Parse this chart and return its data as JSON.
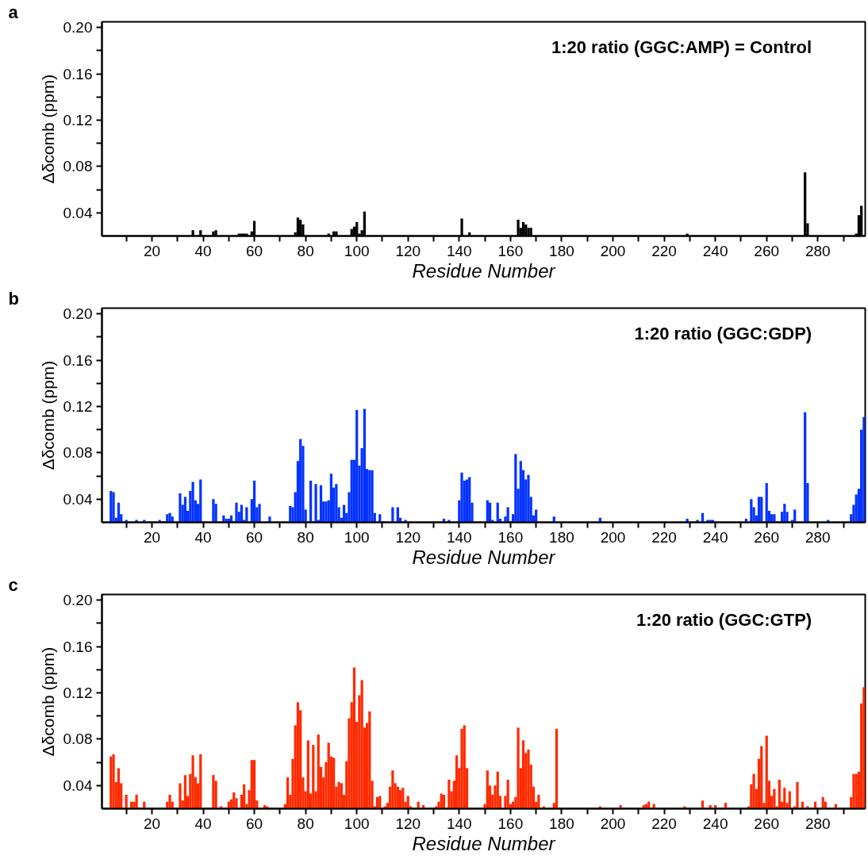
{
  "chart_data": [
    {
      "type": "bar",
      "title": "1:20 ratio (GGC:AMP) = Control",
      "xlabel": "Residue Number",
      "ylabel": "Δδcomb (ppm)",
      "annotations": [
        "a"
      ],
      "color": "#000000",
      "x": [
        36,
        39,
        44,
        45,
        54,
        55,
        56,
        57,
        59,
        60,
        76,
        77,
        78,
        79,
        89,
        91,
        92,
        98,
        99,
        100,
        101,
        102,
        103,
        141,
        144,
        163,
        164,
        165,
        166,
        167,
        168,
        229,
        275,
        276,
        295,
        296,
        297
      ],
      "values": [
        0.025,
        0.025,
        0.024,
        0.025,
        0.022,
        0.022,
        0.022,
        0.022,
        0.024,
        0.033,
        0.023,
        0.036,
        0.034,
        0.03,
        0.022,
        0.024,
        0.024,
        0.026,
        0.028,
        0.032,
        0.022,
        0.025,
        0.041,
        0.035,
        0.023,
        0.034,
        0.027,
        0.032,
        0.03,
        0.027,
        0.027,
        0.022,
        0.075,
        0.031,
        0.022,
        0.038,
        0.046
      ],
      "xlim": [
        0.5,
        298.5
      ],
      "ylim": [
        0.02,
        0.205
      ],
      "xticks": [
        {
          "value": 10,
          "label": null
        },
        20,
        {
          "value": 30,
          "label": null
        },
        40,
        {
          "value": 50,
          "label": null
        },
        60,
        {
          "value": 70,
          "label": null
        },
        80,
        {
          "value": 90,
          "label": null
        },
        100,
        {
          "value": 110,
          "label": null
        },
        120,
        {
          "value": 130,
          "label": null
        },
        140,
        {
          "value": 150,
          "label": null
        },
        160,
        {
          "value": 170,
          "label": null
        },
        180,
        {
          "value": 190,
          "label": null
        },
        200,
        {
          "value": 210,
          "label": null
        },
        220,
        {
          "value": 230,
          "label": null
        },
        240,
        {
          "value": 250,
          "label": null
        },
        260,
        {
          "value": 270,
          "label": null
        },
        280,
        {
          "value": 290,
          "label": null
        }
      ],
      "yticks": [
        0.04,
        {
          "value": 0.06,
          "label": null
        },
        0.08,
        {
          "value": 0.1,
          "label": null
        },
        0.12,
        {
          "value": 0.14,
          "label": null
        },
        0.16,
        {
          "value": 0.18,
          "label": null
        },
        {
          "value": 0.2,
          "label": "0.20"
        }
      ]
    },
    {
      "type": "bar",
      "title": "1:20 ratio (GGC:GDP)",
      "xlabel": "Residue Number",
      "ylabel": "Δδcomb (ppm)",
      "annotations": [
        "b"
      ],
      "color": "#0433ff",
      "x": [
        4,
        5,
        6,
        7,
        8,
        10,
        14,
        17,
        23,
        24,
        25,
        26,
        27,
        28,
        31,
        32,
        33,
        34,
        35,
        36,
        37,
        38,
        39,
        44,
        45,
        48,
        49,
        50,
        51,
        52,
        53,
        54,
        55,
        56,
        57,
        59,
        60,
        61,
        62,
        66,
        74,
        75,
        76,
        77,
        78,
        79,
        80,
        82,
        83,
        84,
        85,
        86,
        87,
        88,
        89,
        90,
        91,
        92,
        93,
        94,
        95,
        96,
        97,
        98,
        99,
        100,
        101,
        102,
        103,
        104,
        105,
        106,
        107,
        109,
        110,
        114,
        116,
        117,
        119,
        134,
        136,
        140,
        141,
        142,
        143,
        144,
        145,
        151,
        152,
        153,
        155,
        156,
        158,
        159,
        160,
        161,
        162,
        163,
        164,
        165,
        166,
        167,
        168,
        169,
        170,
        177,
        195,
        229,
        233,
        235,
        237,
        238,
        239,
        252,
        254,
        255,
        256,
        257,
        258,
        260,
        261,
        262,
        263,
        264,
        266,
        267,
        268,
        270,
        271,
        275,
        276,
        284,
        293,
        294,
        295,
        296,
        297,
        298
      ],
      "values": [
        0.047,
        0.046,
        0.024,
        0.037,
        0.027,
        0.022,
        0.022,
        0.022,
        0.022,
        0.021,
        0.021,
        0.027,
        0.028,
        0.025,
        0.045,
        0.035,
        0.042,
        0.03,
        0.047,
        0.055,
        0.039,
        0.036,
        0.057,
        0.04,
        0.036,
        0.026,
        0.023,
        0.023,
        0.026,
        0.021,
        0.037,
        0.029,
        0.035,
        0.022,
        0.033,
        0.04,
        0.056,
        0.033,
        0.036,
        0.025,
        0.034,
        0.033,
        0.046,
        0.073,
        0.092,
        0.086,
        0.031,
        0.056,
        0.021,
        0.053,
        0.022,
        0.052,
        0.038,
        0.038,
        0.039,
        0.062,
        0.05,
        0.053,
        0.033,
        0.024,
        0.035,
        0.028,
        0.046,
        0.074,
        0.074,
        0.117,
        0.069,
        0.084,
        0.118,
        0.066,
        0.065,
        0.065,
        0.028,
        0.027,
        0.021,
        0.033,
        0.033,
        0.024,
        0.022,
        0.023,
        0.022,
        0.039,
        0.063,
        0.056,
        0.057,
        0.059,
        0.037,
        0.039,
        0.037,
        0.022,
        0.037,
        0.023,
        0.025,
        0.033,
        0.021,
        0.027,
        0.079,
        0.049,
        0.073,
        0.065,
        0.057,
        0.061,
        0.042,
        0.026,
        0.031,
        0.025,
        0.024,
        0.023,
        0.022,
        0.028,
        0.022,
        0.022,
        0.022,
        0.023,
        0.04,
        0.033,
        0.026,
        0.042,
        0.042,
        0.054,
        0.03,
        0.027,
        0.027,
        0.021,
        0.029,
        0.036,
        0.029,
        0.022,
        0.031,
        0.115,
        0.054,
        0.022,
        0.027,
        0.035,
        0.044,
        0.049,
        0.1,
        0.111
      ],
      "xlim": [
        0.5,
        298.5
      ],
      "ylim": [
        0.02,
        0.205
      ],
      "xticks": [
        {
          "value": 10,
          "label": null
        },
        20,
        {
          "value": 30,
          "label": null
        },
        40,
        {
          "value": 50,
          "label": null
        },
        60,
        {
          "value": 70,
          "label": null
        },
        80,
        {
          "value": 90,
          "label": null
        },
        100,
        {
          "value": 110,
          "label": null
        },
        120,
        {
          "value": 130,
          "label": null
        },
        140,
        {
          "value": 150,
          "label": null
        },
        160,
        {
          "value": 170,
          "label": null
        },
        180,
        {
          "value": 190,
          "label": null
        },
        200,
        {
          "value": 210,
          "label": null
        },
        220,
        {
          "value": 230,
          "label": null
        },
        240,
        {
          "value": 250,
          "label": null
        },
        260,
        {
          "value": 270,
          "label": null
        },
        280,
        {
          "value": 290,
          "label": null
        }
      ],
      "yticks": [
        0.04,
        {
          "value": 0.06,
          "label": null
        },
        0.08,
        {
          "value": 0.1,
          "label": null
        },
        0.12,
        {
          "value": 0.14,
          "label": null
        },
        0.16,
        {
          "value": 0.18,
          "label": null
        },
        {
          "value": 0.2,
          "label": "0.20"
        }
      ]
    },
    {
      "type": "bar",
      "title": "1:20 ratio (GGC:GTP)",
      "xlabel": "Residue Number",
      "ylabel": "Δδcomb (ppm)",
      "annotations": [
        "c"
      ],
      "color": "#ff2a00",
      "x": [
        4,
        5,
        6,
        7,
        8,
        10,
        12,
        13,
        14,
        15,
        17,
        26,
        27,
        28,
        31,
        32,
        33,
        34,
        35,
        36,
        37,
        38,
        39,
        44,
        45,
        47,
        50,
        51,
        52,
        53,
        55,
        56,
        57,
        58,
        59,
        60,
        61,
        64,
        65,
        72,
        73,
        74,
        75,
        76,
        77,
        78,
        79,
        80,
        81,
        82,
        83,
        84,
        85,
        86,
        87,
        88,
        89,
        90,
        91,
        92,
        93,
        94,
        95,
        96,
        97,
        98,
        99,
        100,
        101,
        102,
        103,
        104,
        105,
        106,
        107,
        108,
        109,
        110,
        111,
        112,
        113,
        114,
        115,
        116,
        117,
        118,
        119,
        120,
        121,
        124,
        126,
        131,
        132,
        133,
        134,
        136,
        137,
        138,
        139,
        140,
        141,
        142,
        143,
        150,
        151,
        152,
        153,
        154,
        155,
        156,
        158,
        159,
        160,
        161,
        162,
        163,
        164,
        165,
        166,
        167,
        168,
        169,
        170,
        171,
        173,
        177,
        178,
        195,
        203,
        212,
        213,
        214,
        216,
        228,
        235,
        237,
        238,
        240,
        244,
        253,
        254,
        255,
        256,
        257,
        258,
        259,
        260,
        261,
        262,
        263,
        264,
        265,
        266,
        267,
        268,
        269,
        271,
        272,
        274,
        276,
        279,
        282,
        283,
        287,
        293,
        294,
        295,
        296,
        297,
        298
      ],
      "values": [
        0.065,
        0.067,
        0.043,
        0.055,
        0.042,
        0.032,
        0.026,
        0.026,
        0.032,
        0.021,
        0.026,
        0.026,
        0.032,
        0.026,
        0.042,
        0.027,
        0.049,
        0.031,
        0.05,
        0.066,
        0.047,
        0.042,
        0.067,
        0.049,
        0.044,
        0.022,
        0.026,
        0.028,
        0.034,
        0.029,
        0.032,
        0.041,
        0.024,
        0.036,
        0.062,
        0.062,
        0.027,
        0.023,
        0.022,
        0.024,
        0.047,
        0.032,
        0.063,
        0.092,
        0.112,
        0.105,
        0.047,
        0.035,
        0.079,
        0.033,
        0.075,
        0.035,
        0.084,
        0.056,
        0.047,
        0.06,
        0.077,
        0.065,
        0.064,
        0.039,
        0.043,
        0.042,
        0.032,
        0.061,
        0.098,
        0.112,
        0.142,
        0.095,
        0.118,
        0.131,
        0.09,
        0.094,
        0.104,
        0.044,
        0.022,
        0.03,
        0.031,
        0.021,
        0.022,
        0.025,
        0.039,
        0.053,
        0.042,
        0.039,
        0.036,
        0.038,
        0.026,
        0.031,
        0.022,
        0.026,
        0.023,
        0.022,
        0.026,
        0.033,
        0.032,
        0.045,
        0.035,
        0.044,
        0.066,
        0.055,
        0.089,
        0.092,
        0.055,
        0.024,
        0.053,
        0.04,
        0.032,
        0.04,
        0.052,
        0.031,
        0.031,
        0.045,
        0.024,
        0.026,
        0.03,
        0.09,
        0.055,
        0.079,
        0.068,
        0.071,
        0.058,
        0.039,
        0.026,
        0.032,
        0.022,
        0.025,
        0.089,
        0.022,
        0.023,
        0.023,
        0.024,
        0.026,
        0.024,
        0.022,
        0.027,
        0.021,
        0.023,
        0.023,
        0.025,
        0.022,
        0.041,
        0.05,
        0.037,
        0.063,
        0.074,
        0.025,
        0.083,
        0.044,
        0.031,
        0.037,
        0.022,
        0.045,
        0.026,
        0.038,
        0.025,
        0.035,
        0.022,
        0.043,
        0.026,
        0.022,
        0.026,
        0.03,
        0.026,
        0.024,
        0.03,
        0.05,
        0.05,
        0.052,
        0.111,
        0.125
      ],
      "xlim": [
        0.5,
        298.5
      ],
      "ylim": [
        0.02,
        0.205
      ],
      "xticks": [
        {
          "value": 10,
          "label": null
        },
        20,
        {
          "value": 30,
          "label": null
        },
        40,
        {
          "value": 50,
          "label": null
        },
        60,
        {
          "value": 70,
          "label": null
        },
        80,
        {
          "value": 90,
          "label": null
        },
        100,
        {
          "value": 110,
          "label": null
        },
        120,
        {
          "value": 130,
          "label": null
        },
        140,
        {
          "value": 150,
          "label": null
        },
        160,
        {
          "value": 170,
          "label": null
        },
        180,
        {
          "value": 190,
          "label": null
        },
        200,
        {
          "value": 210,
          "label": null
        },
        220,
        {
          "value": 230,
          "label": null
        },
        240,
        {
          "value": 250,
          "label": null
        },
        260,
        {
          "value": 270,
          "label": null
        },
        280,
        {
          "value": 290,
          "label": null
        }
      ],
      "yticks": [
        0.04,
        {
          "value": 0.06,
          "label": null
        },
        0.08,
        {
          "value": 0.1,
          "label": null
        },
        0.12,
        {
          "value": 0.14,
          "label": null
        },
        0.16,
        {
          "value": 0.18,
          "label": null
        },
        {
          "value": 0.2,
          "label": "0.20"
        }
      ]
    }
  ]
}
